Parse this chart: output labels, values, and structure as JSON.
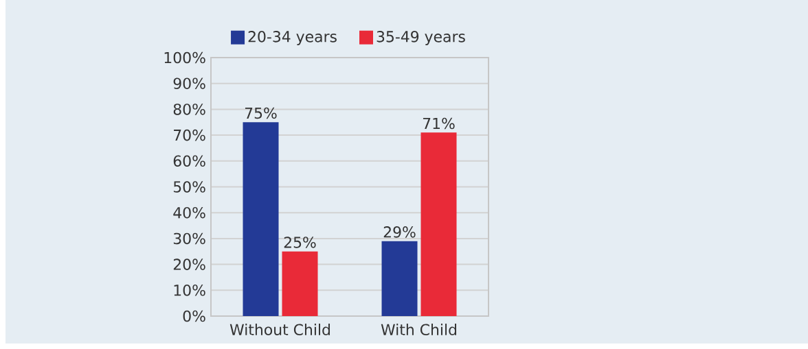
{
  "chart_data": {
    "type": "bar",
    "categories": [
      "Without Child",
      "With Child"
    ],
    "series": [
      {
        "name": "20-34 years",
        "color": "#233a96",
        "values": [
          75,
          29
        ],
        "value_labels": [
          "75%",
          "29%"
        ]
      },
      {
        "name": "35-49 years",
        "color": "#e92a38",
        "values": [
          25,
          71
        ],
        "value_labels": [
          "25%",
          "71%"
        ]
      }
    ],
    "ylim": [
      0,
      100
    ],
    "yticks": [
      {
        "value": 0,
        "label": "0%"
      },
      {
        "value": 10,
        "label": "10%"
      },
      {
        "value": 20,
        "label": "20%"
      },
      {
        "value": 30,
        "label": "30%"
      },
      {
        "value": 40,
        "label": "40%"
      },
      {
        "value": 50,
        "label": "50%"
      },
      {
        "value": 60,
        "label": "60%"
      },
      {
        "value": 70,
        "label": "70%"
      },
      {
        "value": 80,
        "label": "80%"
      },
      {
        "value": 90,
        "label": "90%"
      },
      {
        "value": 100,
        "label": "100%"
      }
    ],
    "grid": "y",
    "legend": "top"
  }
}
